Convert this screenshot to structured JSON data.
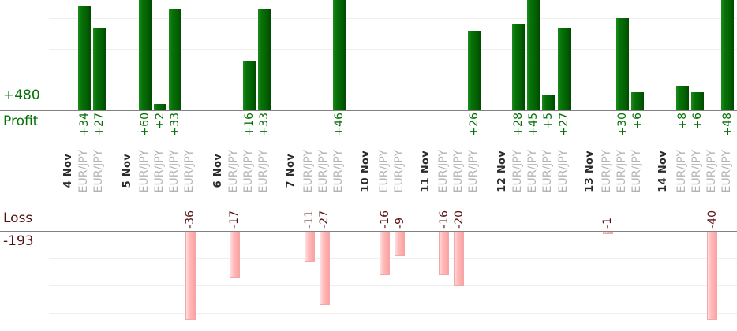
{
  "chart_data": {
    "type": "bar",
    "description": "Per-trade profit and loss bar chart grouped by day, profit bars above upper axis, loss bars hanging below lower axis",
    "grid": true,
    "legend_position": "none",
    "gridline_interval": 10,
    "profit_section": {
      "axis_label": "Profit",
      "total_label": "+480",
      "total": 480
    },
    "loss_section": {
      "axis_label": "Loss",
      "total_label": "-193",
      "total": -193
    },
    "groups": [
      {
        "date": "4 Nov",
        "trades": [
          {
            "symbol": "EUR/JPY",
            "value": 34,
            "label": "+34"
          },
          {
            "symbol": "EUR/JPY",
            "value": 27,
            "label": "+27"
          }
        ]
      },
      {
        "date": "5 Nov",
        "trades": [
          {
            "symbol": "EUR/JPY",
            "value": 60,
            "label": "+60"
          },
          {
            "symbol": "EUR/JPY",
            "value": 2,
            "label": "+2"
          },
          {
            "symbol": "EUR/JPY",
            "value": 33,
            "label": "+33"
          },
          {
            "symbol": "EUR/JPY",
            "value": -36,
            "label": "-36"
          }
        ]
      },
      {
        "date": "6 Nov",
        "trades": [
          {
            "symbol": "EUR/JPY",
            "value": -17,
            "label": "-17"
          },
          {
            "symbol": "EUR/JPY",
            "value": 16,
            "label": "+16"
          },
          {
            "symbol": "EUR/JPY",
            "value": 33,
            "label": "+33"
          }
        ]
      },
      {
        "date": "7 Nov",
        "trades": [
          {
            "symbol": "EUR/JPY",
            "value": -11,
            "label": "-11"
          },
          {
            "symbol": "EUR/JPY",
            "value": -27,
            "label": "-27"
          },
          {
            "symbol": "EUR/JPY",
            "value": 46,
            "label": "+46"
          }
        ]
      },
      {
        "date": "10 Nov",
        "trades": [
          {
            "symbol": "EUR/JPY",
            "value": -16,
            "label": "-16"
          },
          {
            "symbol": "EUR/JPY",
            "value": -9,
            "label": "-9"
          }
        ]
      },
      {
        "date": "11 Nov",
        "trades": [
          {
            "symbol": "EUR/JPY",
            "value": -16,
            "label": "-16"
          },
          {
            "symbol": "EUR/JPY",
            "value": -20,
            "label": "-20"
          },
          {
            "symbol": "EUR/JPY",
            "value": 26,
            "label": "+26"
          }
        ]
      },
      {
        "date": "12 Nov",
        "trades": [
          {
            "symbol": "EUR/JPY",
            "value": 28,
            "label": "+28"
          },
          {
            "symbol": "EUR/JPY",
            "value": 45,
            "label": "+45"
          },
          {
            "symbol": "EUR/JPY",
            "value": 5,
            "label": "+5"
          },
          {
            "symbol": "EUR/JPY",
            "value": 27,
            "label": "+27"
          }
        ]
      },
      {
        "date": "13 Nov",
        "trades": [
          {
            "symbol": "EUR/JPY",
            "value": -1,
            "label": "-1"
          },
          {
            "symbol": "EUR/JPY",
            "value": 30,
            "label": "+30"
          },
          {
            "symbol": "EUR/JPY",
            "value": 6,
            "label": "+6"
          }
        ]
      },
      {
        "date": "14 Nov",
        "trades": [
          {
            "symbol": "EUR/JPY",
            "value": 8,
            "label": "+8"
          },
          {
            "symbol": "EUR/JPY",
            "value": 6,
            "label": "+6"
          },
          {
            "symbol": "EUR/JPY",
            "value": -40,
            "label": "-40"
          },
          {
            "symbol": "EUR/JPY",
            "value": 48,
            "label": "+48"
          }
        ]
      }
    ],
    "colors": {
      "profit_bar": "#0a720a",
      "profit_value_text": "#057005",
      "profit_axis_text": "#067006",
      "loss_bar": "#ffb9b9",
      "loss_value_text": "#5b1212",
      "loss_axis_text": "#551111",
      "date_text": "#2b2b2b",
      "symbol_text": "#b3b3b3",
      "axis_line": "#828282",
      "gridline": "#efefef"
    }
  }
}
